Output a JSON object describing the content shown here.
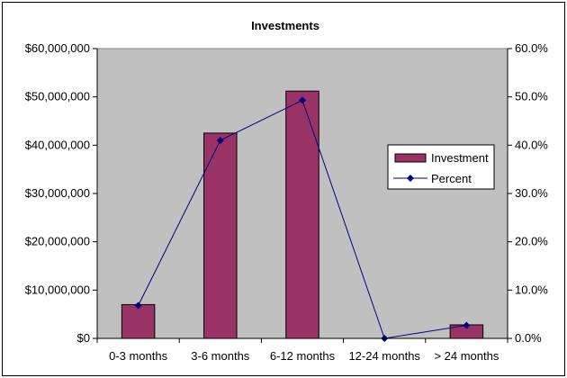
{
  "chart_data": {
    "type": "bar",
    "title": "Investments",
    "categories": [
      "0-3 months",
      "3-6 months",
      "6-12 months",
      "12-24 months",
      "> 24 months"
    ],
    "series": [
      {
        "name": "Investment",
        "type": "bar",
        "axis": "left",
        "color": "#993366",
        "values": [
          7000000,
          42500000,
          51200000,
          0,
          2800000
        ]
      },
      {
        "name": "Percent",
        "type": "line",
        "axis": "right",
        "color": "#000080",
        "values": [
          0.068,
          0.41,
          0.493,
          0.0,
          0.027
        ]
      }
    ],
    "y_left": {
      "min": 0,
      "max": 60000000,
      "step": 10000000,
      "tick_labels": [
        "$0",
        "$10,000,000",
        "$20,000,000",
        "$30,000,000",
        "$40,000,000",
        "$50,000,000",
        "$60,000,000"
      ]
    },
    "y_right": {
      "min": 0,
      "max": 0.6,
      "step": 0.1,
      "tick_labels": [
        "0.0%",
        "10.0%",
        "20.0%",
        "30.0%",
        "40.0%",
        "50.0%",
        "60.0%"
      ]
    },
    "grid": false,
    "plot_background": "#c0c0c0",
    "legend_position": "right-middle"
  }
}
